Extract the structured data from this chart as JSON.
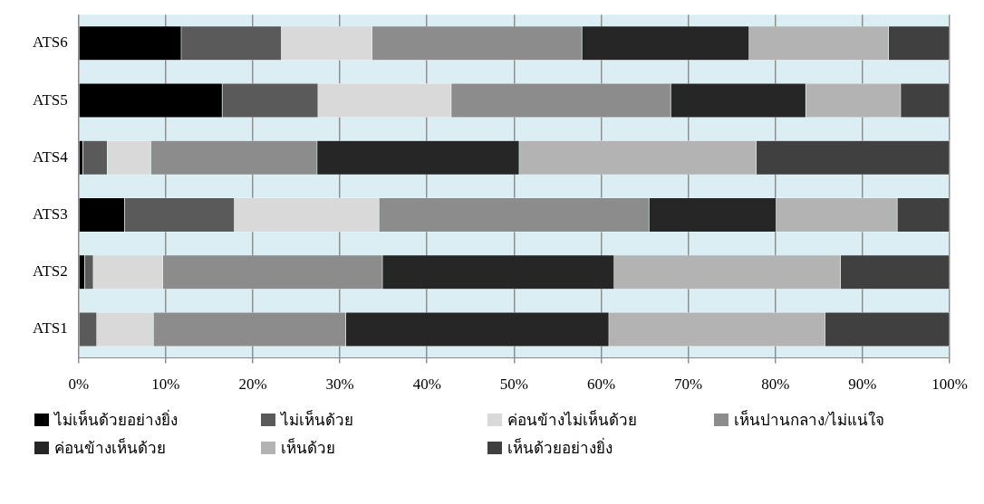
{
  "chart_data": {
    "type": "bar",
    "orientation": "horizontal",
    "stacked": true,
    "categories": [
      "ATS6",
      "ATS5",
      "ATS4",
      "ATS3",
      "ATS2",
      "ATS1"
    ],
    "series": [
      {
        "name": "ไม่เห็นด้วยอย่างยิ่ง",
        "color": "#000000",
        "values": [
          11.8,
          16.5,
          0.5,
          5.3,
          0.7,
          0
        ]
      },
      {
        "name": "ไม่เห็นด้วย",
        "color": "#5a5a5a",
        "values": [
          11.5,
          11.0,
          2.8,
          12.6,
          1.0,
          2.1
        ]
      },
      {
        "name": "ค่อนข้างไม่เห็นด้วย",
        "color": "#d9d9d9",
        "values": [
          10.4,
          15.3,
          5.0,
          16.6,
          8.0,
          6.5
        ]
      },
      {
        "name": "เห็นปานกลาง/ไม่แน่ใจ",
        "color": "#8c8c8c",
        "values": [
          24.1,
          25.2,
          19.1,
          31.0,
          25.2,
          22.1
        ]
      },
      {
        "name": "ค่อนข้างเห็นด้วย",
        "color": "#262626",
        "values": [
          19.2,
          15.5,
          23.2,
          14.6,
          26.6,
          30.2
        ]
      },
      {
        "name": "เห็นด้วย",
        "color": "#b3b3b3",
        "values": [
          16.0,
          10.9,
          27.2,
          13.9,
          26.0,
          24.8
        ]
      },
      {
        "name": "เห็นด้วยอย่างยิ่ง",
        "color": "#404040",
        "values": [
          7.0,
          5.6,
          22.2,
          6.0,
          12.5,
          14.3
        ]
      }
    ],
    "xlim": [
      0,
      100
    ],
    "xticks": [
      {
        "value": 0,
        "label": "0%"
      },
      {
        "value": 10,
        "label": "10%"
      },
      {
        "value": 20,
        "label": "20%"
      },
      {
        "value": 30,
        "label": "30%"
      },
      {
        "value": 40,
        "label": "40%"
      },
      {
        "value": 50,
        "label": "50%"
      },
      {
        "value": 60,
        "label": "60%"
      },
      {
        "value": 70,
        "label": "70%"
      },
      {
        "value": 80,
        "label": "80%"
      },
      {
        "value": 90,
        "label": "90%"
      },
      {
        "value": 100,
        "label": "100%"
      }
    ],
    "grid": "x",
    "legend": "bottom"
  }
}
